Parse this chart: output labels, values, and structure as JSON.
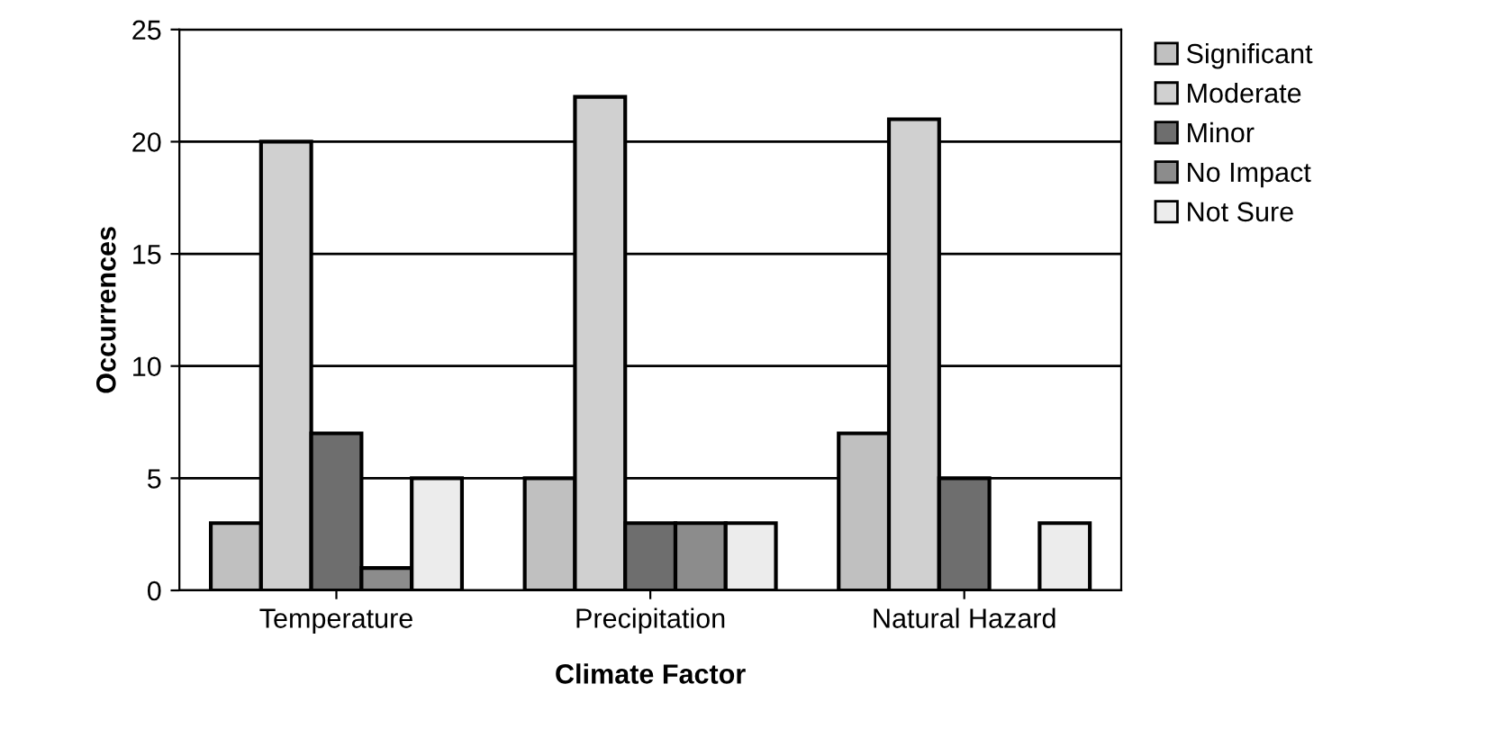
{
  "chart_data": {
    "type": "bar",
    "xlabel": "Climate Factor",
    "ylabel": "Occurrences",
    "categories": [
      "Temperature",
      "Precipitation",
      "Natural Hazard"
    ],
    "series": [
      {
        "name": "Significant",
        "color": "#c0c0c0",
        "values": [
          3,
          5,
          7
        ]
      },
      {
        "name": "Moderate",
        "color": "#d0d0d0",
        "values": [
          20,
          22,
          21
        ]
      },
      {
        "name": "Minor",
        "color": "#6e6e6e",
        "values": [
          7,
          3,
          5
        ]
      },
      {
        "name": "No Impact",
        "color": "#8c8c8c",
        "values": [
          1,
          3,
          0
        ]
      },
      {
        "name": "Not Sure",
        "color": "#ececec",
        "values": [
          5,
          3,
          3
        ]
      }
    ],
    "ylim": [
      0,
      25
    ],
    "yticks": [
      0,
      5,
      10,
      15,
      20,
      25
    ],
    "grid": "y",
    "legend": "right"
  }
}
